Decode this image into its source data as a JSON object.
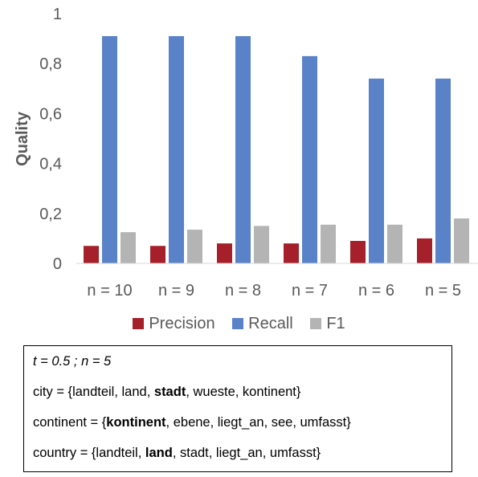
{
  "chart_data": {
    "type": "bar",
    "categories": [
      "n = 10",
      "n = 9",
      "n = 8",
      "n = 7",
      "n = 6",
      "n = 5"
    ],
    "series": [
      {
        "name": "Precision",
        "color": "#a5202a",
        "values": [
          0.07,
          0.07,
          0.08,
          0.08,
          0.09,
          0.1
        ]
      },
      {
        "name": "Recall",
        "color": "#5a82c8",
        "values": [
          0.91,
          0.91,
          0.91,
          0.83,
          0.74,
          0.74
        ]
      },
      {
        "name": "F1",
        "color": "#b4b4b4",
        "values": [
          0.125,
          0.135,
          0.15,
          0.155,
          0.155,
          0.18
        ]
      }
    ],
    "ylabel": "Quality",
    "ylim": [
      0,
      1
    ],
    "yticks": [
      "0",
      "0,2",
      "0,4",
      "0,6",
      "0,8",
      "1"
    ],
    "legend_position": "bottom",
    "grid": false
  },
  "infobox": {
    "line1": "t = 0.5 ; n = 5",
    "city": {
      "pre": "city = {landteil, land, ",
      "bold": "stadt",
      "post": ", wueste, kontinent}"
    },
    "continent": {
      "pre": "continent = {",
      "bold": "kontinent",
      "post": ", ebene, liegt_an, see, umfasst}"
    },
    "country": {
      "pre": "country = {landteil, ",
      "bold": "land",
      "post": ", stadt, liegt_an, umfasst}"
    }
  }
}
